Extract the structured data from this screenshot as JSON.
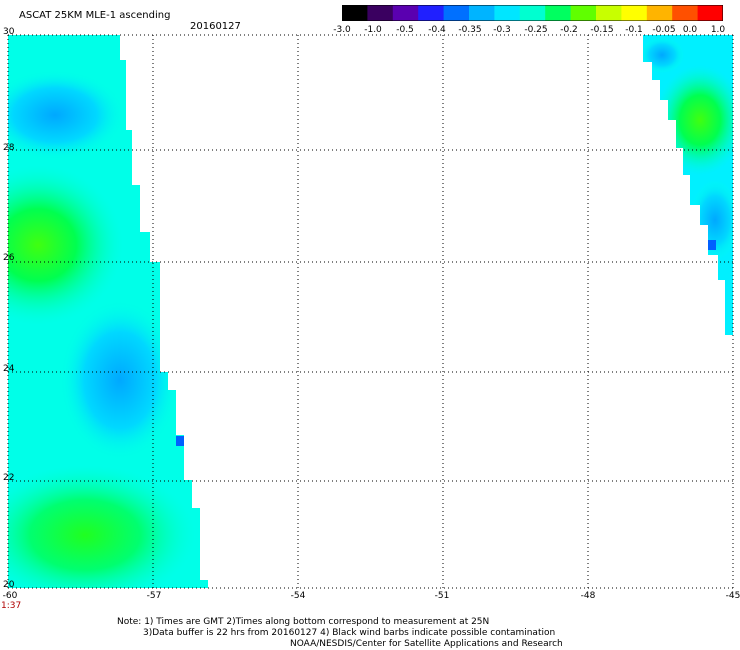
{
  "header": {
    "title": "ASCAT 25KM MLE-1 ascending",
    "date": "20160127"
  },
  "colorbar": {
    "labels": [
      "-3.0",
      "-1.0",
      "-0.5",
      "-0.4",
      "-0.35",
      "-0.3",
      "-0.25",
      "-0.2",
      "-0.15",
      "-0.1",
      "-0.05",
      "0.0",
      "1.0"
    ],
    "colors": [
      "#000000",
      "#3a0060",
      "#5a00b0",
      "#2020ff",
      "#0070ff",
      "#00b4ff",
      "#00e6ff",
      "#00ffd0",
      "#00ff60",
      "#60ff00",
      "#c8ff00",
      "#ffff00",
      "#ffb400",
      "#ff5000",
      "#ff0000"
    ]
  },
  "map": {
    "lon_labels": [
      "-60",
      "-57",
      "-54",
      "-51",
      "-48",
      "-45"
    ],
    "lat_labels": [
      "30",
      "28",
      "26",
      "24",
      "22",
      "20"
    ],
    "time_label": "1:37"
  },
  "notes": {
    "line1": "Note: 1) Times are GMT 2)Times along bottom correspond to measurement at 25N",
    "line2": "3)Data buffer is 22 hrs from 20160127 4) Black wind barbs indicate possible contamination",
    "line3": "NOAA/NESDIS/Center for Satellite Applications and Research"
  }
}
